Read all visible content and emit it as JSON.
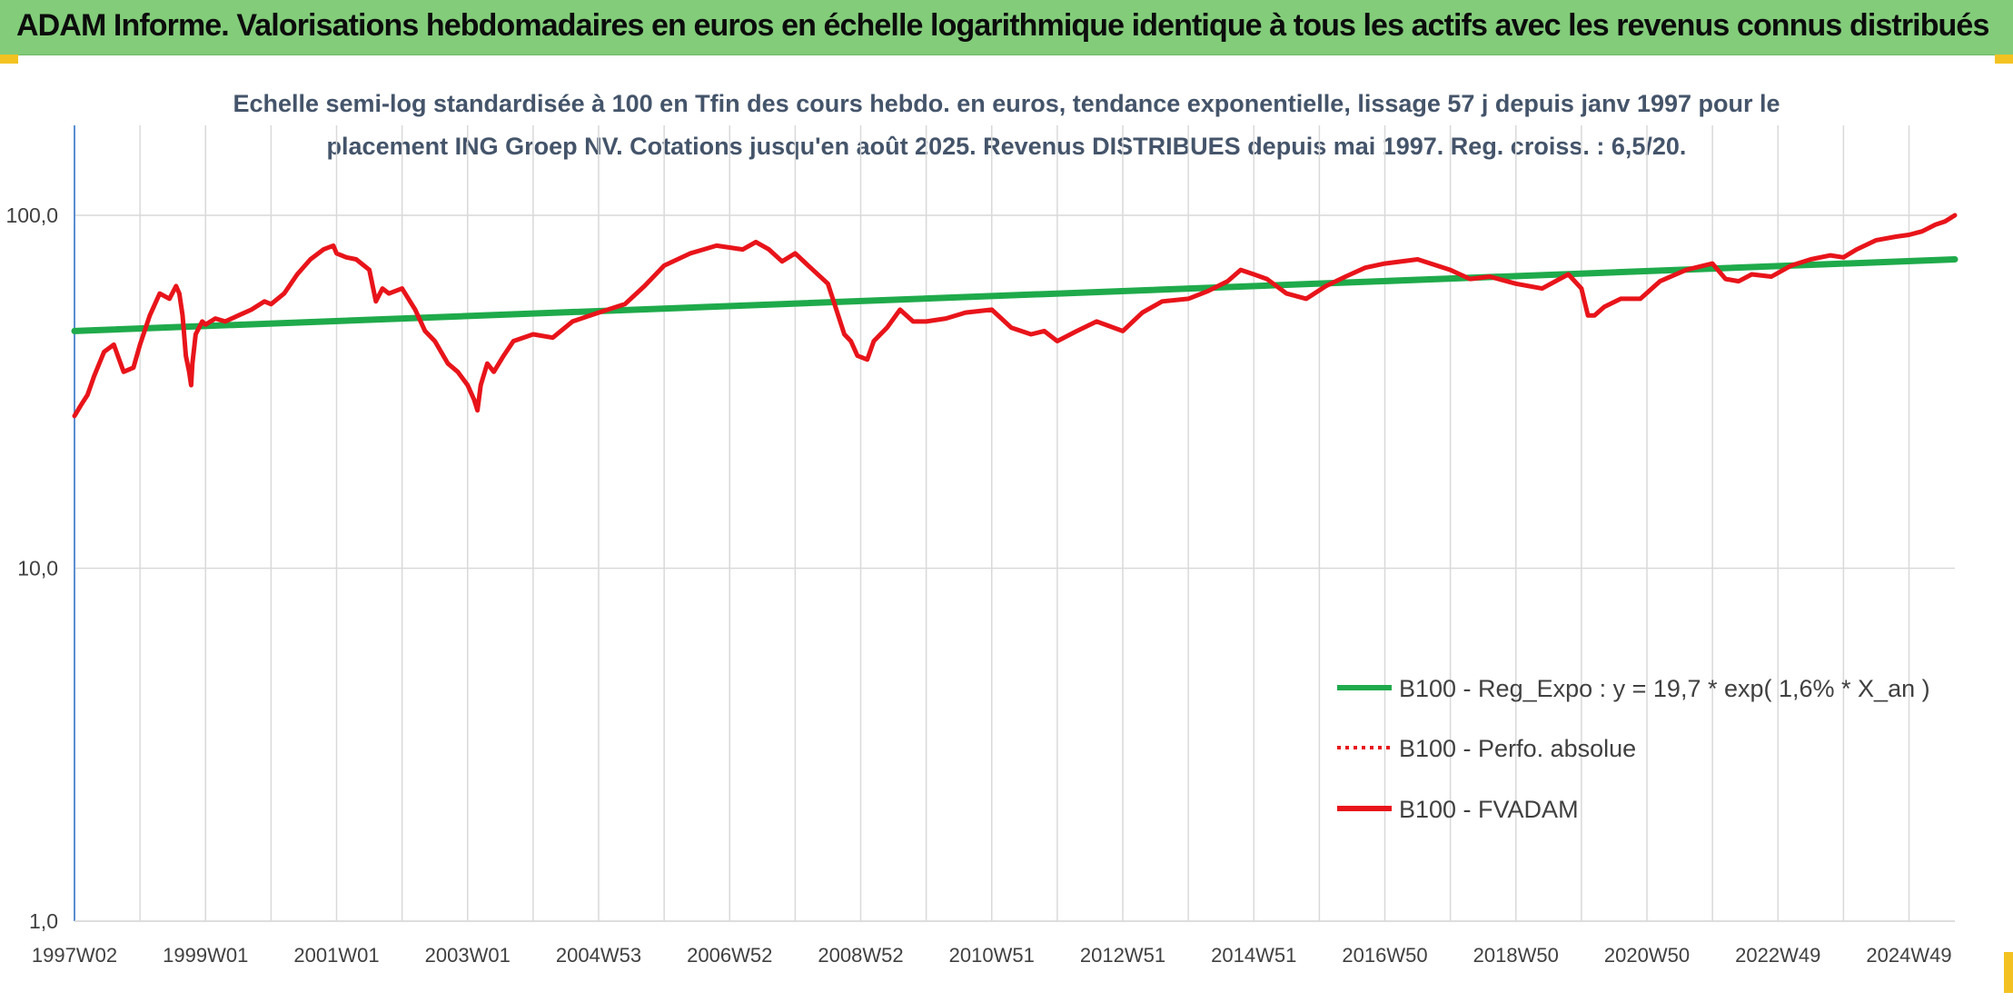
{
  "header": {
    "title": "ADAM Informe. Valorisations hebdomadaires en euros en échelle logarithmique identique à tous les actifs avec les revenus connus distribués"
  },
  "chart_data": {
    "type": "line",
    "y_scale": "log",
    "subtitle_lines": [
      "Echelle semi-log standardisée à 100 en Tfin des cours hebdo. en euros, tendance exponentielle, lissage 57 j depuis janv 1997 pour le",
      "placement ING Groep NV. Cotations jusqu'en août 2025. Revenus DISTRIBUES depuis mai 1997. Reg. croiss. : 6,5/20."
    ],
    "ylim": [
      1,
      200
    ],
    "y_ticks": [
      {
        "value": 1,
        "label": "1,0"
      },
      {
        "value": 10,
        "label": "10,0"
      },
      {
        "value": 100,
        "label": "100,0"
      }
    ],
    "xlim": [
      1997.0,
      2025.7
    ],
    "x_ticks": [
      {
        "x": 1997.0,
        "label": "1997W02"
      },
      {
        "x": 1999.0,
        "label": "1999W01"
      },
      {
        "x": 2001.0,
        "label": "2001W01"
      },
      {
        "x": 2003.0,
        "label": "2003W01"
      },
      {
        "x": 2005.0,
        "label": "2004W53"
      },
      {
        "x": 2007.0,
        "label": "2006W52"
      },
      {
        "x": 2009.0,
        "label": "2008W52"
      },
      {
        "x": 2011.0,
        "label": "2010W51"
      },
      {
        "x": 2013.0,
        "label": "2012W51"
      },
      {
        "x": 2015.0,
        "label": "2014W51"
      },
      {
        "x": 2017.0,
        "label": "2016W50"
      },
      {
        "x": 2019.0,
        "label": "2018W50"
      },
      {
        "x": 2021.0,
        "label": "2020W50"
      },
      {
        "x": 2023.0,
        "label": "2022W49"
      },
      {
        "x": 2025.0,
        "label": "2024W49"
      }
    ],
    "grid": true,
    "legend_position": "bottom-right",
    "series": [
      {
        "name": "B100 - Reg_Expo : y = 19,7 * exp( 1,6% *  X_an )",
        "color": "#1faa4b",
        "style": "solid",
        "x": [
          1997.0,
          2025.7
        ],
        "y": [
          47,
          75
        ]
      },
      {
        "name": "B100 - Perfo. absolue",
        "color": "#e8141a",
        "style": "dotted",
        "x": [],
        "y": []
      },
      {
        "name": "B100 - FVADAM",
        "color": "#e8141a",
        "style": "solid",
        "x": [
          1997.0,
          1997.1,
          1997.2,
          1997.3,
          1997.45,
          1997.6,
          1997.75,
          1997.9,
          1998.0,
          1998.15,
          1998.3,
          1998.45,
          1998.55,
          1998.6,
          1998.65,
          1998.7,
          1998.75,
          1998.78,
          1998.8,
          1998.85,
          1998.95,
          1999.0,
          1999.15,
          1999.3,
          1999.5,
          1999.7,
          1999.9,
          2000.0,
          2000.2,
          2000.4,
          2000.6,
          2000.8,
          2000.95,
          2001.0,
          2001.15,
          2001.3,
          2001.5,
          2001.6,
          2001.7,
          2001.8,
          2002.0,
          2002.2,
          2002.35,
          2002.5,
          2002.7,
          2002.85,
          2003.0,
          2003.1,
          2003.15,
          2003.2,
          2003.3,
          2003.4,
          2003.55,
          2003.7,
          2004.0,
          2004.3,
          2004.6,
          2005.0,
          2005.4,
          2005.7,
          2006.0,
          2006.4,
          2006.8,
          2007.2,
          2007.4,
          2007.6,
          2007.8,
          2008.0,
          2008.2,
          2008.5,
          2008.75,
          2008.85,
          2008.95,
          2009.1,
          2009.2,
          2009.4,
          2009.6,
          2009.8,
          2010.0,
          2010.3,
          2010.6,
          2011.0,
          2011.3,
          2011.6,
          2011.8,
          2012.0,
          2012.3,
          2012.6,
          2013.0,
          2013.3,
          2013.6,
          2014.0,
          2014.3,
          2014.6,
          2014.8,
          2015.0,
          2015.2,
          2015.5,
          2015.8,
          2016.1,
          2016.4,
          2016.7,
          2017.0,
          2017.5,
          2018.0,
          2018.3,
          2018.6,
          2019.0,
          2019.4,
          2019.8,
          2020.0,
          2020.1,
          2020.2,
          2020.35,
          2020.6,
          2020.9,
          2021.2,
          2021.6,
          2022.0,
          2022.2,
          2022.4,
          2022.6,
          2022.9,
          2023.2,
          2023.5,
          2023.8,
          2024.0,
          2024.2,
          2024.5,
          2024.8,
          2025.0,
          2025.2,
          2025.4,
          2025.55,
          2025.7
        ],
        "y": [
          27,
          29,
          31,
          35,
          41,
          43,
          36,
          37,
          43,
          52,
          60,
          58,
          63,
          60,
          52,
          40,
          36,
          33,
          38,
          46,
          50,
          49,
          51,
          50,
          52,
          54,
          57,
          56,
          60,
          68,
          75,
          80,
          82,
          78,
          76,
          75,
          70,
          57,
          62,
          60,
          62,
          54,
          47,
          44,
          38,
          36,
          33,
          30,
          28,
          33,
          38,
          36,
          40,
          44,
          46,
          45,
          50,
          53,
          56,
          63,
          72,
          78,
          82,
          80,
          84,
          80,
          74,
          78,
          72,
          64,
          46,
          44,
          40,
          39,
          44,
          48,
          54,
          50,
          50,
          51,
          53,
          54,
          48,
          46,
          47,
          44,
          47,
          50,
          47,
          53,
          57,
          58,
          61,
          65,
          70,
          68,
          66,
          60,
          58,
          63,
          67,
          71,
          73,
          75,
          70,
          66,
          67,
          64,
          62,
          68,
          62,
          52,
          52,
          55,
          58,
          58,
          65,
          70,
          73,
          66,
          65,
          68,
          67,
          72,
          75,
          77,
          76,
          80,
          85,
          87,
          88,
          90,
          94,
          96,
          100
        ]
      }
    ]
  }
}
